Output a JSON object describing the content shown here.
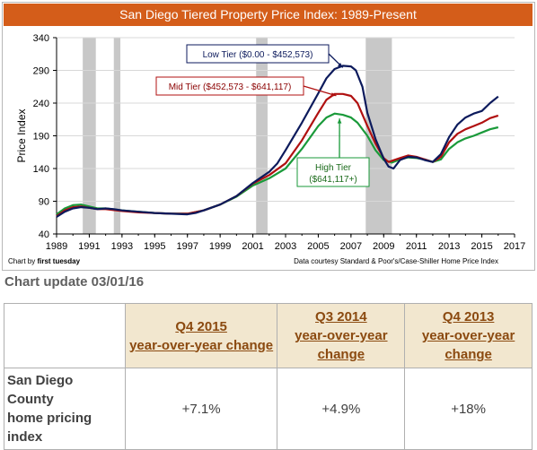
{
  "chart_data": {
    "type": "line",
    "title": "San Diego Tiered Property Price Index: 1989-Present",
    "xlabel": "",
    "ylabel": "Price Index",
    "xlim": [
      1989,
      2017
    ],
    "ylim": [
      40,
      340
    ],
    "x_ticks": [
      "1989",
      "1991",
      "1993",
      "1995",
      "1997",
      "1999",
      "2001",
      "2003",
      "2005",
      "2007",
      "2009",
      "2011",
      "2013",
      "2015",
      "2017"
    ],
    "y_ticks": [
      "40",
      "90",
      "140",
      "190",
      "240",
      "290",
      "340"
    ],
    "recession_bands": [
      [
        1990.6,
        1991.4
      ],
      [
        1992.5,
        1992.9
      ],
      [
        2001.2,
        2001.9
      ],
      [
        2007.9,
        2009.5
      ]
    ],
    "footer_left_prefix": "Chart by ",
    "footer_left_bold": "first tuesday",
    "footer_right": "Data courtesy Standard & Poor's/Case-Shiller Home Price Index",
    "series": [
      {
        "name": "Low Tier ($0.00 - $452,573)",
        "color": "#0c1a5c",
        "points": [
          [
            1989.0,
            66
          ],
          [
            1989.5,
            74
          ],
          [
            1990.0,
            79
          ],
          [
            1990.5,
            81
          ],
          [
            1991.0,
            80
          ],
          [
            1991.5,
            78
          ],
          [
            1992.0,
            79
          ],
          [
            1992.5,
            78
          ],
          [
            1993.0,
            76
          ],
          [
            1994.0,
            74
          ],
          [
            1995.0,
            72
          ],
          [
            1996.0,
            71
          ],
          [
            1997.0,
            70
          ],
          [
            1997.5,
            72
          ],
          [
            1998.0,
            76
          ],
          [
            1999.0,
            85
          ],
          [
            2000.0,
            98
          ],
          [
            2001.0,
            118
          ],
          [
            2002.0,
            135
          ],
          [
            2002.5,
            148
          ],
          [
            2003.0,
            168
          ],
          [
            2004.0,
            210
          ],
          [
            2005.0,
            255
          ],
          [
            2005.5,
            278
          ],
          [
            2006.0,
            292
          ],
          [
            2006.5,
            297
          ],
          [
            2007.0,
            296
          ],
          [
            2007.3,
            290
          ],
          [
            2007.7,
            265
          ],
          [
            2008.0,
            225
          ],
          [
            2008.5,
            185
          ],
          [
            2009.0,
            155
          ],
          [
            2009.3,
            143
          ],
          [
            2009.6,
            140
          ],
          [
            2010.0,
            153
          ],
          [
            2010.5,
            158
          ],
          [
            2011.0,
            157
          ],
          [
            2011.5,
            153
          ],
          [
            2012.0,
            150
          ],
          [
            2012.5,
            162
          ],
          [
            2013.0,
            188
          ],
          [
            2013.5,
            207
          ],
          [
            2014.0,
            218
          ],
          [
            2014.5,
            224
          ],
          [
            2015.0,
            228
          ],
          [
            2015.5,
            240
          ],
          [
            2016.0,
            250
          ]
        ]
      },
      {
        "name": "Mid Tier ($452,573 - $641,117)",
        "color": "#b01010",
        "points": [
          [
            1989.0,
            67
          ],
          [
            1989.5,
            76
          ],
          [
            1990.0,
            81
          ],
          [
            1990.5,
            82
          ],
          [
            1991.0,
            80
          ],
          [
            1991.5,
            78
          ],
          [
            1992.0,
            78
          ],
          [
            1993.0,
            75
          ],
          [
            1994.0,
            73
          ],
          [
            1995.0,
            72
          ],
          [
            1996.0,
            71
          ],
          [
            1997.0,
            71
          ],
          [
            1998.0,
            76
          ],
          [
            1999.0,
            85
          ],
          [
            2000.0,
            98
          ],
          [
            2001.0,
            117
          ],
          [
            2002.0,
            130
          ],
          [
            2003.0,
            148
          ],
          [
            2004.0,
            183
          ],
          [
            2005.0,
            225
          ],
          [
            2005.5,
            245
          ],
          [
            2006.0,
            254
          ],
          [
            2006.5,
            254
          ],
          [
            2007.0,
            251
          ],
          [
            2007.4,
            240
          ],
          [
            2008.0,
            205
          ],
          [
            2008.5,
            178
          ],
          [
            2009.0,
            156
          ],
          [
            2009.3,
            150
          ],
          [
            2010.0,
            156
          ],
          [
            2010.5,
            160
          ],
          [
            2011.0,
            158
          ],
          [
            2011.5,
            154
          ],
          [
            2012.0,
            150
          ],
          [
            2012.5,
            158
          ],
          [
            2013.0,
            180
          ],
          [
            2013.5,
            193
          ],
          [
            2014.0,
            200
          ],
          [
            2014.5,
            205
          ],
          [
            2015.0,
            210
          ],
          [
            2015.5,
            217
          ],
          [
            2016.0,
            221
          ]
        ]
      },
      {
        "name": "High Tier ($641,117+)",
        "color": "#1a9a3a",
        "points": [
          [
            1989.0,
            70
          ],
          [
            1989.5,
            79
          ],
          [
            1990.0,
            84
          ],
          [
            1990.5,
            85
          ],
          [
            1991.0,
            82
          ],
          [
            1991.5,
            79
          ],
          [
            1992.0,
            79
          ],
          [
            1993.0,
            76
          ],
          [
            1994.0,
            74
          ],
          [
            1995.0,
            72
          ],
          [
            1996.0,
            71
          ],
          [
            1997.0,
            71
          ],
          [
            1998.0,
            76
          ],
          [
            1999.0,
            85
          ],
          [
            2000.0,
            97
          ],
          [
            2001.0,
            114
          ],
          [
            2002.0,
            125
          ],
          [
            2003.0,
            140
          ],
          [
            2004.0,
            170
          ],
          [
            2005.0,
            205
          ],
          [
            2005.5,
            218
          ],
          [
            2006.0,
            224
          ],
          [
            2006.5,
            222
          ],
          [
            2007.0,
            218
          ],
          [
            2007.4,
            210
          ],
          [
            2008.0,
            190
          ],
          [
            2008.5,
            168
          ],
          [
            2009.0,
            153
          ],
          [
            2009.5,
            149
          ],
          [
            2010.0,
            154
          ],
          [
            2010.5,
            157
          ],
          [
            2011.0,
            156
          ],
          [
            2011.5,
            154
          ],
          [
            2012.0,
            150
          ],
          [
            2012.5,
            154
          ],
          [
            2013.0,
            170
          ],
          [
            2013.5,
            180
          ],
          [
            2014.0,
            186
          ],
          [
            2014.5,
            190
          ],
          [
            2015.0,
            195
          ],
          [
            2015.5,
            200
          ],
          [
            2016.0,
            203
          ]
        ]
      }
    ],
    "annotations": [
      {
        "lines": [
          "Low Tier ($0.00 - $452,573)"
        ],
        "color": "#0c1a5c",
        "text_color": "#0c1a5c",
        "target": [
          2006.5,
          297
        ]
      },
      {
        "lines": [
          "Mid Tier ($452,573 - $641,117)"
        ],
        "color": "#b01010",
        "text_color": "#8b0000",
        "target": [
          2006.1,
          254
        ]
      },
      {
        "lines": [
          "High Tier",
          "($641,117+)"
        ],
        "color": "#1a9a3a",
        "text_color": "#1a6a1a",
        "target": [
          2006.3,
          222
        ]
      }
    ]
  },
  "update_label": "Chart update 03/01/16",
  "table": {
    "headers": [
      [
        "Q4 2015",
        "year-over-year change"
      ],
      [
        "Q3 2014",
        "year-over-year",
        "change"
      ],
      [
        "Q4 2013",
        "year-over-year",
        "change"
      ]
    ],
    "row_label": [
      "San Diego County",
      "home pricing",
      "index"
    ],
    "values": [
      "+7.1%",
      "+4.9%",
      "+18%"
    ]
  }
}
